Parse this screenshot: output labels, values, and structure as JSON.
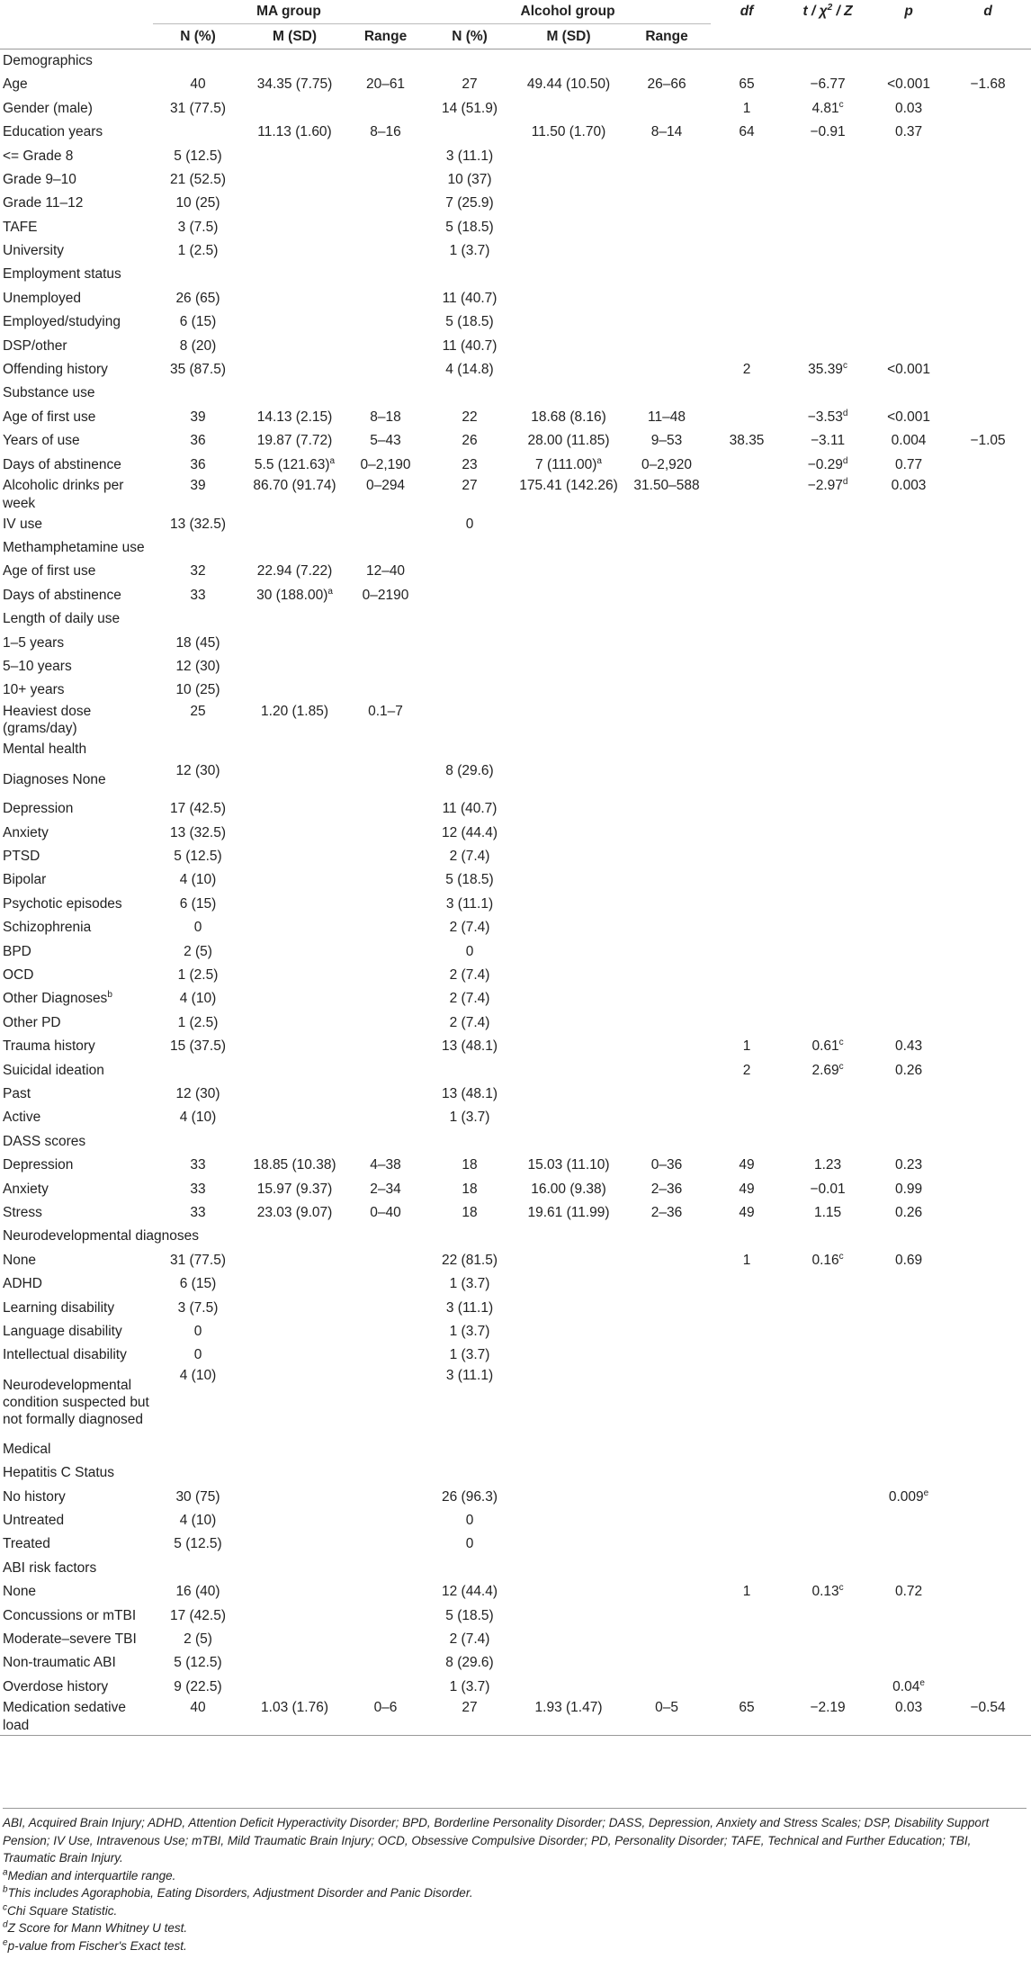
{
  "header": {
    "group_ma": "MA group",
    "group_alcohol": "Alcohol group",
    "df": "df",
    "test": "t / χ",
    "test_sup": "2",
    "test_tail": "/ Z",
    "p": "p",
    "d": "d",
    "n_pct": "N (%)",
    "m_sd": "M (SD)",
    "range": "Range"
  },
  "rows": [
    {
      "label": "Demographics"
    },
    {
      "label": "Age",
      "ma_n": "40",
      "ma_msd": "34.35 (7.75)",
      "ma_range": "20–61",
      "al_n": "27",
      "al_msd": "49.44 (10.50)",
      "al_range": "26–66",
      "df": "65",
      "test": "−6.77",
      "p": "<0.001",
      "d": "−1.68"
    },
    {
      "label": "Gender (male)",
      "ma_n": "31 (77.5)",
      "al_n": "14 (51.9)",
      "df": "1",
      "test": "4.81",
      "test_sup": "c",
      "p": "0.03"
    },
    {
      "label": "Education years",
      "ma_msd": "11.13 (1.60)",
      "ma_range": "8–16",
      "al_msd": "11.50 (1.70)",
      "al_range": "8–14",
      "df": "64",
      "test": "−0.91",
      "p": "0.37"
    },
    {
      "label": "<= Grade 8",
      "ma_n": "5 (12.5)",
      "al_n": "3 (11.1)"
    },
    {
      "label": "Grade 9–10",
      "ma_n": "21 (52.5)",
      "al_n": "10 (37)"
    },
    {
      "label": "Grade 11–12",
      "ma_n": "10 (25)",
      "al_n": "7 (25.9)"
    },
    {
      "label": "TAFE",
      "ma_n": "3 (7.5)",
      "al_n": "5 (18.5)"
    },
    {
      "label": "University",
      "ma_n": "1 (2.5)",
      "al_n": "1 (3.7)"
    },
    {
      "label": "Employment status"
    },
    {
      "label": "Unemployed",
      "ma_n": "26 (65)",
      "al_n": "11 (40.7)"
    },
    {
      "label": "Employed/studying",
      "ma_n": "6 (15)",
      "al_n": "5 (18.5)"
    },
    {
      "label": "DSP/other",
      "ma_n": "8 (20)",
      "al_n": "11 (40.7)"
    },
    {
      "label": "Offending history",
      "ma_n": "35 (87.5)",
      "al_n": "4 (14.8)",
      "df": "2",
      "test": "35.39",
      "test_sup": "c",
      "p": "<0.001"
    },
    {
      "label": "Substance use"
    },
    {
      "label": "Age of first use",
      "ma_n": "39",
      "ma_msd": "14.13 (2.15)",
      "ma_range": "8–18",
      "al_n": "22",
      "al_msd": "18.68 (8.16)",
      "al_range": "11–48",
      "test": "−3.53",
      "test_sup": "d",
      "p": "<0.001"
    },
    {
      "label": "Years of use",
      "ma_n": "36",
      "ma_msd": "19.87 (7.72)",
      "ma_range": "5–43",
      "al_n": "26",
      "al_msd": "28.00 (11.85)",
      "al_range": "9–53",
      "df": "38.35",
      "test": "−3.11",
      "p": "0.004",
      "d": "−1.05"
    },
    {
      "label": "Days of abstinence",
      "ma_n": "36",
      "ma_msd": "5.5 (121.63)",
      "ma_msd_sup": "a",
      "ma_range": "0–2,190",
      "al_n": "23",
      "al_msd": "7 (111.00)",
      "al_msd_sup": "a",
      "al_range": "0–2,920",
      "test": "−0.29",
      "test_sup": "d",
      "p": "0.77"
    },
    {
      "label": "Alcoholic drinks per week",
      "ma_n": "39",
      "ma_msd": "86.70 (91.74)",
      "ma_range": "0–294",
      "al_n": "27",
      "al_msd": "175.41 (142.26)",
      "al_range": "31.50–588",
      "test": "−2.97",
      "test_sup": "d",
      "p": "0.003",
      "two": true
    },
    {
      "label": "IV use",
      "ma_n": "13 (32.5)",
      "al_n": "0"
    },
    {
      "label": "Methamphetamine use"
    },
    {
      "label": "Age of first use",
      "ma_n": "32",
      "ma_msd": "22.94 (7.22)",
      "ma_range": "12–40"
    },
    {
      "label": "Days of abstinence",
      "ma_n": "33",
      "ma_msd": "30 (188.00)",
      "ma_msd_sup": "a",
      "ma_range": "0–2190"
    },
    {
      "label": "Length of daily use"
    },
    {
      "label": "1–5 years",
      "ma_n": "18 (45)"
    },
    {
      "label": "5–10 years",
      "ma_n": "12 (30)"
    },
    {
      "label": "10+ years",
      "ma_n": "10 (25)"
    },
    {
      "label": "Heaviest dose (grams/day)",
      "ma_n": "25",
      "ma_msd": "1.20 (1.85)",
      "ma_range": "0.1–7",
      "two": true
    },
    {
      "label": "Mental health"
    },
    {
      "label": "Diagnoses None",
      "ma_n": "12 (30)",
      "al_n": "8 (29.6)",
      "two": true
    },
    {
      "label": "Depression",
      "ma_n": "17 (42.5)",
      "al_n": "11 (40.7)"
    },
    {
      "label": "Anxiety",
      "ma_n": "13 (32.5)",
      "al_n": "12 (44.4)"
    },
    {
      "label": "PTSD",
      "ma_n": "5 (12.5)",
      "al_n": "2 (7.4)"
    },
    {
      "label": "Bipolar",
      "ma_n": "4 (10)",
      "al_n": "5 (18.5)"
    },
    {
      "label": "Psychotic episodes",
      "ma_n": "6 (15)",
      "al_n": "3 (11.1)"
    },
    {
      "label": "Schizophrenia",
      "ma_n": "0",
      "al_n": "2 (7.4)"
    },
    {
      "label": "BPD",
      "ma_n": "2 (5)",
      "al_n": "0"
    },
    {
      "label": "OCD",
      "ma_n": "1 (2.5)",
      "al_n": "2 (7.4)"
    },
    {
      "label": "Other Diagnoses",
      "label_sup": "b",
      "ma_n": "4 (10)",
      "al_n": "2 (7.4)"
    },
    {
      "label": "Other PD",
      "ma_n": "1 (2.5)",
      "al_n": "2 (7.4)"
    },
    {
      "label": "Trauma history",
      "ma_n": "15 (37.5)",
      "al_n": "13 (48.1)",
      "df": "1",
      "test": "0.61",
      "test_sup": "c",
      "p": "0.43"
    },
    {
      "label": "Suicidal ideation",
      "df": "2",
      "test": "2.69",
      "test_sup": "c",
      "p": "0.26"
    },
    {
      "label": "Past",
      "ma_n": "12 (30)",
      "al_n": "13 (48.1)"
    },
    {
      "label": "Active",
      "ma_n": "4 (10)",
      "al_n": "1 (3.7)"
    },
    {
      "label": "DASS scores"
    },
    {
      "label": "Depression",
      "ma_n": "33",
      "ma_msd": "18.85 (10.38)",
      "ma_range": "4–38",
      "al_n": "18",
      "al_msd": "15.03 (11.10)",
      "al_range": "0–36",
      "df": "49",
      "test": "1.23",
      "p": "0.23"
    },
    {
      "label": "Anxiety",
      "ma_n": "33",
      "ma_msd": "15.97 (9.37)",
      "ma_range": "2–34",
      "al_n": "18",
      "al_msd": "16.00 (9.38)",
      "al_range": "2–36",
      "df": "49",
      "test": "−0.01",
      "p": "0.99"
    },
    {
      "label": "Stress",
      "ma_n": "33",
      "ma_msd": "23.03 (9.07)",
      "ma_range": "0–40",
      "al_n": "18",
      "al_msd": "19.61 (11.99)",
      "al_range": "2–36",
      "df": "49",
      "test": "1.15",
      "p": "0.26"
    },
    {
      "label": "Neurodevelopmental diagnoses"
    },
    {
      "label": "None",
      "ma_n": "31 (77.5)",
      "al_n": "22 (81.5)",
      "df": "1",
      "test": "0.16",
      "test_sup": "c",
      "p": "0.69"
    },
    {
      "label": "ADHD",
      "ma_n": "6 (15)",
      "al_n": "1 (3.7)"
    },
    {
      "label": "Learning disability",
      "ma_n": "3 (7.5)",
      "al_n": "3 (11.1)"
    },
    {
      "label": "Language disability",
      "ma_n": "0",
      "al_n": "1 (3.7)"
    },
    {
      "label": "Intellectual disability",
      "ma_n": "0",
      "al_n": "1 (3.7)"
    },
    {
      "label": "Neurodevelopmental condition suspected but not formally diagnosed",
      "ma_n": "4 (10)",
      "al_n": "3 (11.1)",
      "four": true
    },
    {
      "label": "Medical"
    },
    {
      "label": "Hepatitis C Status"
    },
    {
      "label": "No history",
      "ma_n": "30 (75)",
      "al_n": "26 (96.3)",
      "p": "0.009",
      "p_sup": "e"
    },
    {
      "label": "Untreated",
      "ma_n": "4 (10)",
      "al_n": "0"
    },
    {
      "label": "Treated",
      "ma_n": "5 (12.5)",
      "al_n": "0"
    },
    {
      "label": "ABI risk factors"
    },
    {
      "label": "None",
      "ma_n": "16 (40)",
      "al_n": "12 (44.4)",
      "df": "1",
      "test": "0.13",
      "test_sup": "c",
      "p": "0.72"
    },
    {
      "label": "Concussions or mTBI",
      "ma_n": "17 (42.5)",
      "al_n": "5 (18.5)"
    },
    {
      "label": "Moderate–severe TBI",
      "ma_n": "2 (5)",
      "al_n": "2 (7.4)"
    },
    {
      "label": "Non-traumatic ABI",
      "ma_n": "5 (12.5)",
      "al_n": "8 (29.6)"
    },
    {
      "label": "Overdose history",
      "ma_n": "9 (22.5)",
      "al_n": "1 (3.7)",
      "p": "0.04",
      "p_sup": "e"
    },
    {
      "label": "Medication sedative load",
      "ma_n": "40",
      "ma_msd": "1.03 (1.76)",
      "ma_range": "0–6",
      "al_n": "27",
      "al_msd": "1.93 (1.47)",
      "al_range": "0–5",
      "df": "65",
      "test": "−2.19",
      "p": "0.03",
      "d": "−0.54",
      "two": true
    }
  ],
  "notes": {
    "abbrev": "ABI, Acquired Brain Injury; ADHD, Attention Deficit Hyperactivity Disorder; BPD, Borderline Personality Disorder; DASS, Depression, Anxiety and Stress Scales; DSP, Disability Support Pension; IV Use, Intravenous Use; mTBI, Mild Traumatic Brain Injury; OCD, Obsessive Compulsive Disorder; PD, Personality Disorder; TAFE, Technical and Further Education; TBI, Traumatic Brain Injury.",
    "a": "Median and interquartile range.",
    "b": "This includes Agoraphobia, Eating Disorders, Adjustment Disorder and Panic Disorder.",
    "c": "Chi Square Statistic.",
    "d": "Z Score for Mann Whitney U test.",
    "e": "p-value from Fischer's Exact test.",
    "a_mark": "a",
    "b_mark": "b",
    "c_mark": "c",
    "d_mark": "d",
    "e_mark": "e"
  }
}
